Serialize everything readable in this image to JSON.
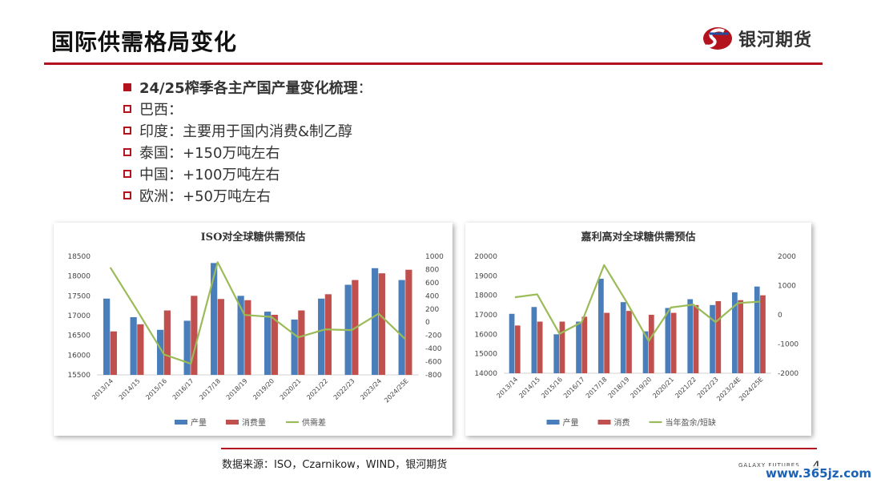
{
  "header": {
    "title": "国际供需格局变化",
    "logo_text": "银河期货"
  },
  "bullets": [
    {
      "text": "24/25榨季各主产国产量变化梳理",
      "suffix": "：",
      "style": "filled"
    },
    {
      "text": "巴西：",
      "suffix": "",
      "style": "hollow"
    },
    {
      "text": "印度：主要用于国内消费&制乙醇",
      "suffix": "",
      "style": "hollow"
    },
    {
      "text": "泰国：+150万吨左右",
      "suffix": "",
      "style": "hollow"
    },
    {
      "text": "中国：+100万吨左右",
      "suffix": "",
      "style": "hollow"
    },
    {
      "text": "欧洲：+50万吨左右",
      "suffix": "",
      "style": "hollow"
    }
  ],
  "footer": {
    "source": "数据来源：ISO，Czarnikow，WIND，银河期货",
    "brand": "GALAXY FUTURES",
    "page": "4",
    "watermark": "www.365jz.com"
  },
  "colors": {
    "accent": "#b3131d",
    "bar_blue": "#4a7ebb",
    "bar_red": "#c0504d",
    "line_green": "#9bbb59"
  },
  "chart_data": [
    {
      "type": "bar",
      "title": "ISO对全球糖供需预估",
      "categories": [
        "2013/14",
        "2014/15",
        "2015/16",
        "2016/17",
        "2017/18",
        "2018/19",
        "2019/20",
        "2020/21",
        "2021/22",
        "2022/23",
        "2023/24",
        "2024/25E"
      ],
      "series": [
        {
          "name": "产量",
          "type": "bar",
          "axis": "left",
          "color": "#4a7ebb",
          "values": [
            17430,
            16960,
            16640,
            16870,
            18330,
            17500,
            17100,
            16900,
            17430,
            17780,
            18200,
            17900
          ]
        },
        {
          "name": "消费量",
          "type": "bar",
          "axis": "left",
          "color": "#c0504d",
          "values": [
            16600,
            16780,
            17130,
            17500,
            17420,
            17390,
            17020,
            17130,
            17540,
            17900,
            18070,
            18160
          ]
        },
        {
          "name": "供需差",
          "type": "line",
          "axis": "right",
          "color": "#9bbb59",
          "values": [
            830,
            180,
            -490,
            -630,
            910,
            110,
            80,
            -230,
            -110,
            -120,
            130,
            -260
          ]
        }
      ],
      "ylim": [
        15500,
        18500
      ],
      "yticks": [
        15500,
        16000,
        16500,
        17000,
        17500,
        18000,
        18500
      ],
      "y2lim": [
        -800,
        1000
      ],
      "y2ticks": [
        -800,
        -600,
        -400,
        -200,
        0,
        200,
        400,
        600,
        800,
        1000
      ],
      "legend": "bottom"
    },
    {
      "type": "bar",
      "title": "嘉利高对全球糖供需预估",
      "categories": [
        "2013/14",
        "2014/15",
        "2015/16",
        "2016/17",
        "2017/18",
        "2018/19",
        "2019/20",
        "2020/21",
        "2021/22",
        "2022/23",
        "2023/24E",
        "2024/25E"
      ],
      "series": [
        {
          "name": "产量",
          "type": "bar",
          "axis": "left",
          "color": "#4a7ebb",
          "values": [
            17050,
            17400,
            16000,
            16650,
            18850,
            17650,
            16150,
            17350,
            17800,
            17500,
            18150,
            18450
          ]
        },
        {
          "name": "消费",
          "type": "bar",
          "axis": "left",
          "color": "#c0504d",
          "values": [
            16450,
            16650,
            16650,
            16900,
            17100,
            17200,
            17000,
            17100,
            17500,
            17700,
            17750,
            18000
          ]
        },
        {
          "name": "当年盈余/短缺",
          "type": "line",
          "axis": "right",
          "color": "#9bbb59",
          "values": [
            600,
            700,
            -650,
            -250,
            1700,
            450,
            -900,
            250,
            350,
            -250,
            400,
            450
          ]
        }
      ],
      "ylim": [
        14000,
        20000
      ],
      "yticks": [
        14000,
        15000,
        16000,
        17000,
        18000,
        19000,
        20000
      ],
      "y2lim": [
        -2000,
        2000
      ],
      "y2ticks": [
        -2000,
        -1000,
        0,
        1000,
        2000
      ],
      "legend": "bottom"
    }
  ]
}
